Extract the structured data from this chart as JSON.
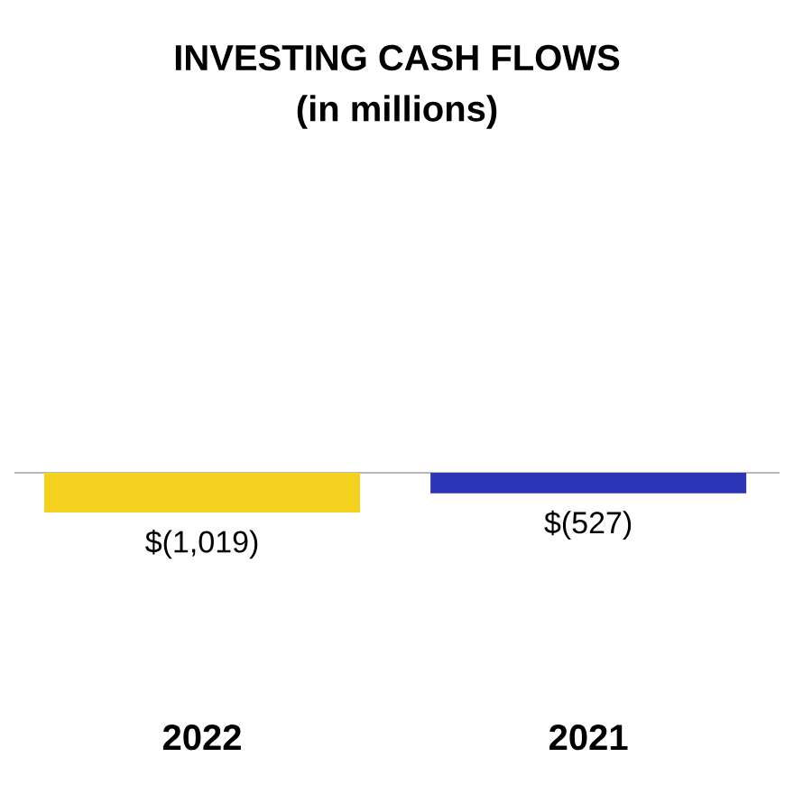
{
  "chart_data": {
    "type": "bar",
    "title": "INVESTING CASH FLOWS",
    "subtitle": "(in millions)",
    "categories": [
      "2022",
      "2021"
    ],
    "values": [
      -1019,
      -527
    ],
    "colors": [
      "#f5d11f",
      "#2b35b5"
    ],
    "value_labels": [
      "$(1,019)",
      "$(527)"
    ]
  }
}
